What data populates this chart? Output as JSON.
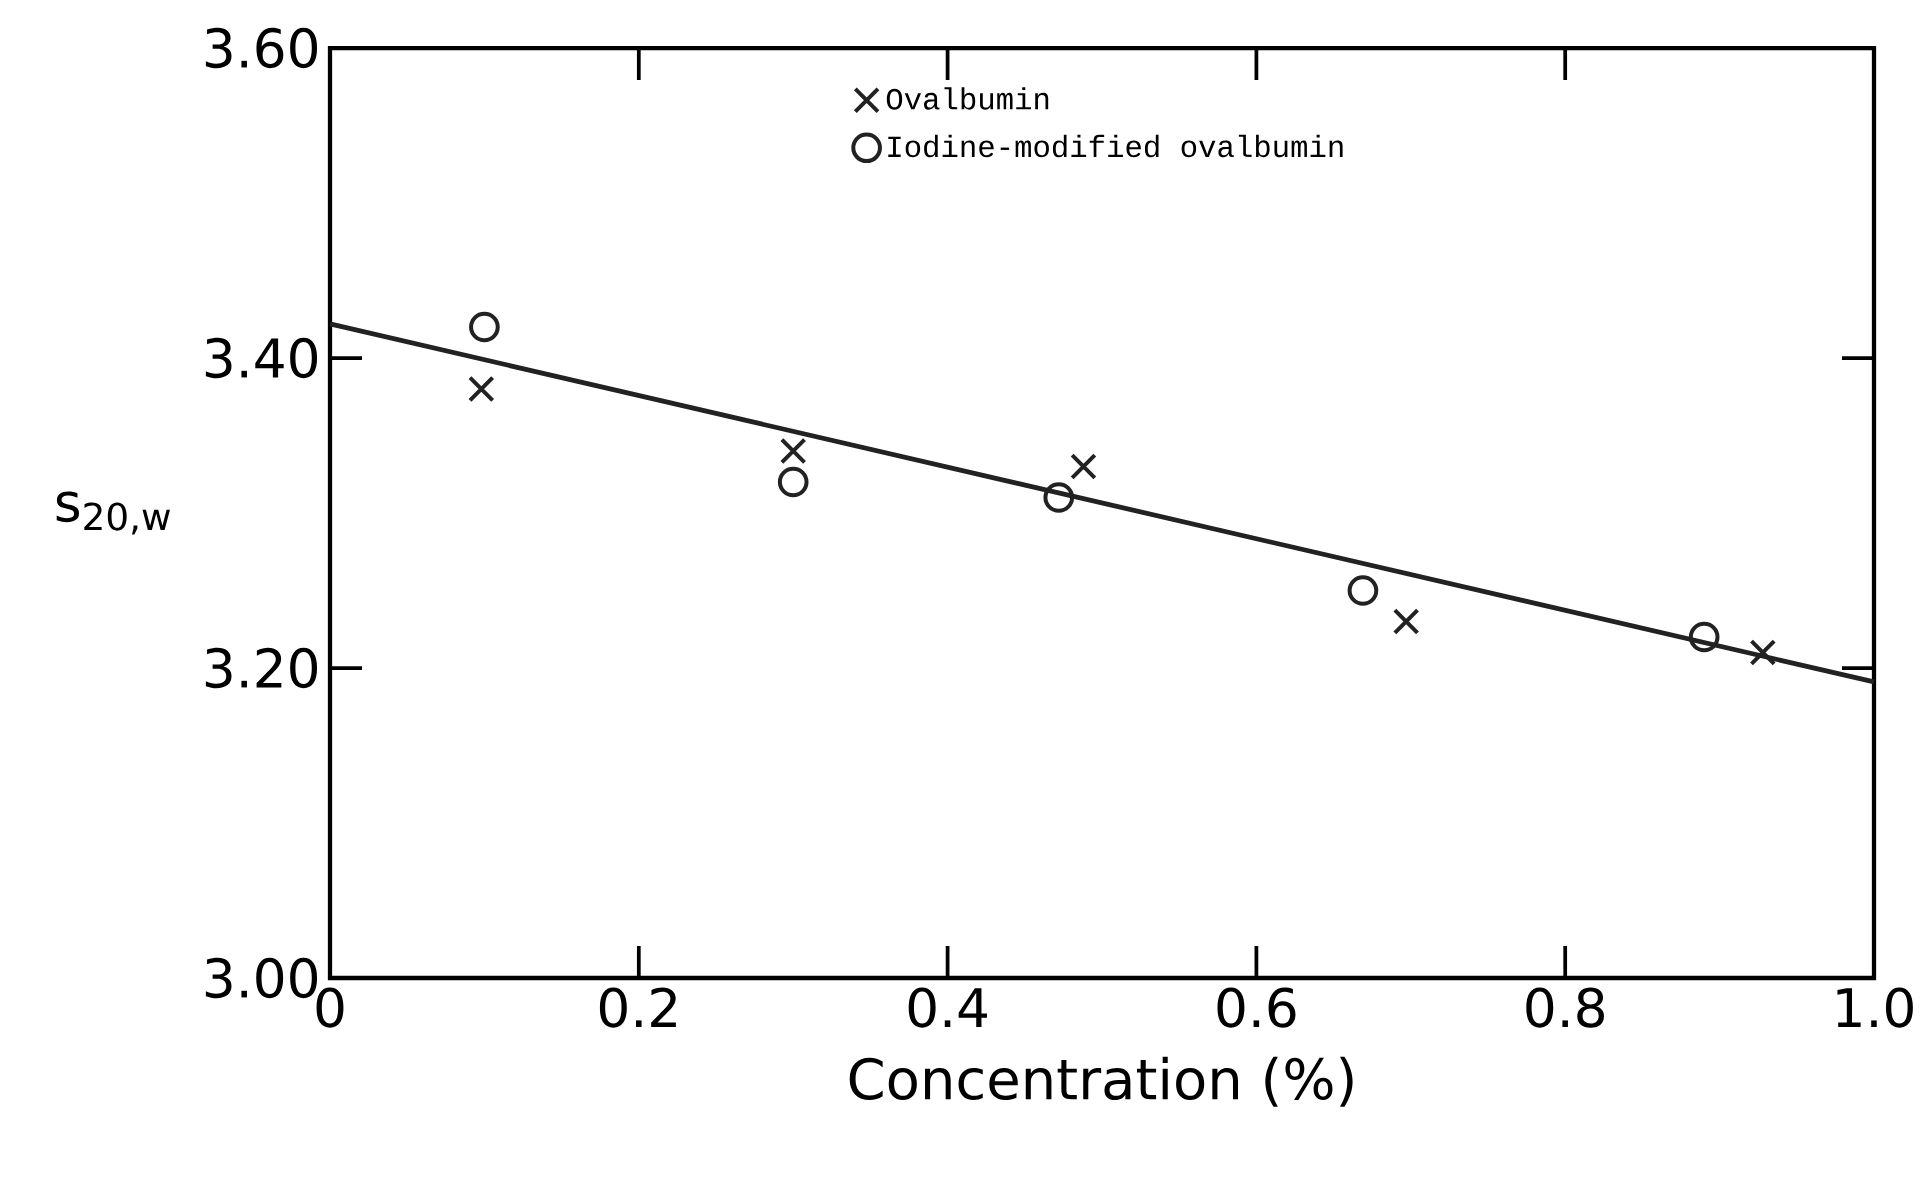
{
  "chart_data": {
    "type": "scatter",
    "xlabel": "Concentration (%)",
    "ylabel": "s$_{20,w}$",
    "series": [
      {
        "name": "Ovalbumin",
        "color": "#222222",
        "marker": "cross",
        "x": [
          0.098,
          0.3,
          0.488,
          0.697,
          0.928
        ],
        "values": [
          3.38,
          3.34,
          3.33,
          3.23,
          3.21
        ]
      },
      {
        "name": "Iodine-modified ovalbumin",
        "color": "#222222",
        "marker": "circle",
        "x": [
          0.1,
          0.3,
          0.472,
          0.669,
          0.89
        ],
        "values": [
          3.42,
          3.32,
          3.31,
          3.25,
          3.22
        ]
      },
      {
        "type": "line",
        "color": "#222222",
        "marker": "none",
        "line_style": "solid",
        "x": [
          0,
          1.0
        ],
        "values": [
          3.422,
          3.191
        ]
      }
    ],
    "xlim": [
      0,
      1.0
    ],
    "ylim": [
      3.0,
      3.6
    ],
    "xticks": [
      0,
      0.2,
      0.4,
      0.6,
      0.8,
      {
        "value": 1.0,
        "label": "1.0"
      }
    ],
    "yticks": [
      {
        "value": 3.0,
        "label": "3.00"
      },
      {
        "value": 3.2,
        "label": "3.20"
      },
      {
        "value": 3.4,
        "label": "3.40"
      },
      {
        "value": 3.6,
        "label": "3.60"
      }
    ],
    "grid": false,
    "legend": "top"
  }
}
